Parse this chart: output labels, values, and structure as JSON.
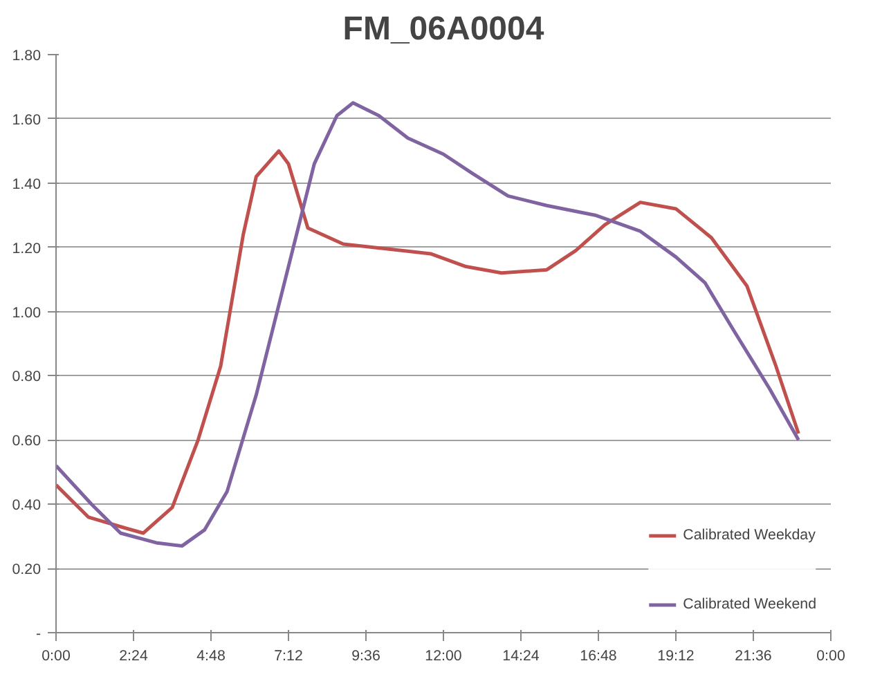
{
  "chart_data": {
    "type": "line",
    "title": "FM_06A0004",
    "xlim": [
      0,
      24
    ],
    "xticks": [
      {
        "value": 0,
        "label": "0:00"
      },
      {
        "value": 2.4,
        "label": "2:24"
      },
      {
        "value": 4.8,
        "label": "4:48"
      },
      {
        "value": 7.2,
        "label": "7:12"
      },
      {
        "value": 9.6,
        "label": "9:36"
      },
      {
        "value": 12,
        "label": "12:00"
      },
      {
        "value": 14.4,
        "label": "14:24"
      },
      {
        "value": 16.8,
        "label": "16:48"
      },
      {
        "value": 19.2,
        "label": "19:12"
      },
      {
        "value": 21.6,
        "label": "21:36"
      },
      {
        "value": 24,
        "label": "0:00"
      }
    ],
    "ylim": [
      0,
      1.8
    ],
    "yticks": [
      {
        "value": 0,
        "label": "-"
      },
      {
        "value": 0.2,
        "label": "0.20"
      },
      {
        "value": 0.4,
        "label": "0.40"
      },
      {
        "value": 0.6,
        "label": "0.60"
      },
      {
        "value": 0.8,
        "label": "0.80"
      },
      {
        "value": 1.0,
        "label": "1.00"
      },
      {
        "value": 1.2,
        "label": "1.20"
      },
      {
        "value": 1.4,
        "label": "1.40"
      },
      {
        "value": 1.6,
        "label": "1.60"
      },
      {
        "value": 1.8,
        "label": "1.80"
      }
    ],
    "grid": "y",
    "legend": "bottom right",
    "marker": "none",
    "line_style": "solid",
    "series": [
      {
        "name": "Calibrated Weekday",
        "color": "#c0504d",
        "x": [
          0,
          1,
          2,
          2.7,
          3.6,
          4.4,
          5.1,
          5.8,
          6.2,
          6.9,
          7.2,
          7.8,
          8.9,
          10.7,
          11.6,
          12.7,
          13.8,
          15.2,
          16.1,
          17,
          18.1,
          19.2,
          20.3,
          21.4,
          22.3,
          23
        ],
        "values": [
          0.46,
          0.36,
          0.33,
          0.31,
          0.39,
          0.6,
          0.83,
          1.24,
          1.42,
          1.5,
          1.46,
          1.26,
          1.21,
          1.19,
          1.18,
          1.14,
          1.12,
          1.13,
          1.19,
          1.27,
          1.34,
          1.32,
          1.23,
          1.08,
          0.83,
          0.62
        ]
      },
      {
        "name": "Calibrated Weekend",
        "color": "#8064a2",
        "x": [
          0,
          1.1,
          2,
          3.1,
          3.9,
          4.6,
          5.3,
          6.2,
          7.1,
          8,
          8.7,
          9.2,
          10,
          10.9,
          12,
          12.9,
          14,
          15.2,
          16.7,
          18.1,
          19.2,
          20.1,
          21,
          22.1,
          23
        ],
        "values": [
          0.52,
          0.4,
          0.31,
          0.28,
          0.27,
          0.32,
          0.44,
          0.74,
          1.1,
          1.46,
          1.61,
          1.65,
          1.61,
          1.54,
          1.49,
          1.43,
          1.36,
          1.33,
          1.3,
          1.25,
          1.17,
          1.09,
          0.94,
          0.76,
          0.6
        ]
      }
    ]
  }
}
